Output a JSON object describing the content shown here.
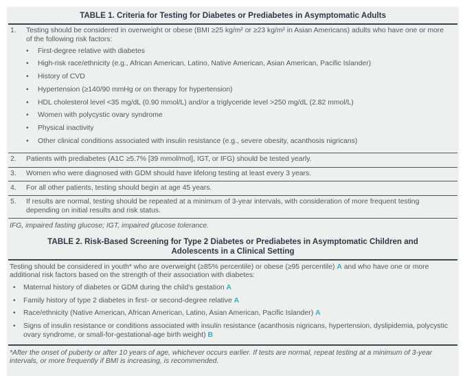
{
  "colors": {
    "page_bg": "#ffffff",
    "table_bg": "#edf0ee",
    "title_text": "#2e3945",
    "body_text": "#54585c",
    "rule": "#39434d",
    "grade_accent": "#33afc2"
  },
  "table1": {
    "title": "TABLE 1. Criteria for Testing for Diabetes or Prediabetes in Asymptomatic Adults",
    "rows": [
      {
        "num": "1.",
        "text": "Testing should be considered in overweight or obese (BMI ≥25 kg/m² or ≥23 kg/m² in Asian Americans) adults who have one or more of the following risk factors:",
        "bullets": [
          "First-degree relative with diabetes",
          "High-risk race/ethnicity (e.g., African American, Latino, Native American, Asian American, Pacific Islander)",
          "History of CVD",
          "Hypertension (≥140/90 mmHg or on therapy for hypertension)",
          "HDL cholesterol level <35 mg/dL (0.90 mmol/L) and/or a triglyceride level >250 mg/dL (2.82 mmol/L)",
          "Women with polycystic ovary syndrome",
          "Physical inactivity",
          "Other clinical conditions associated with insulin resistance (e.g., severe obesity, acanthosis nigricans)"
        ]
      },
      {
        "num": "2.",
        "text": "Patients with prediabetes (A1C ≥5.7% [39 mmol/mol], IGT, or IFG) should be tested yearly."
      },
      {
        "num": "3.",
        "text": "Women who were diagnosed with GDM should have lifelong testing at least every 3 years."
      },
      {
        "num": "4.",
        "text": "For all other patients, testing should begin at age 45 years."
      },
      {
        "num": "5.",
        "text": "If results are normal, testing should be repeated at a minimum of 3-year intervals, with consideration of more frequent testing depending on initial results and risk status."
      }
    ],
    "footnote": "IFG, impaired fasting glucose; IGT, impaired glucose tolerance.",
    "bullet_glyph": "•"
  },
  "table2": {
    "title": "TABLE 2. Risk-Based Screening for Type 2 Diabetes or Prediabetes in Asymptomatic Children and Adolescents in a Clinical Setting",
    "intro_pre": "Testing should be considered in youth* who are overweight (≥85% percentile) or obese (≥95 percentile) ",
    "intro_grade": "A",
    "intro_post": " and who have one or more additional risk factors based on the strength of their association with diabetes:",
    "bullets": [
      {
        "text": "Maternal history of diabetes or GDM during the child’s gestation ",
        "grade": "A"
      },
      {
        "text": "Family history of type 2 diabetes in first- or second-degree relative ",
        "grade": "A"
      },
      {
        "text": "Race/ethnicity (Native American, African American, Latino, Asian American, Pacific Islander) ",
        "grade": "A"
      },
      {
        "text": "Signs of insulin resistance or conditions associated with insulin resistance (acanthosis nigricans, hypertension, dyslipidemia, polycystic ovary syndrome, or small-for-gestational-age birth weight) ",
        "grade": "B"
      }
    ],
    "footnote": "*After the onset of puberty or after 10 years of age, whichever occurs earlier. If tests are normal, repeat testing at a minimum of 3-year intervals, or more frequently if BMI is increasing, is recommended.",
    "bullet_glyph": "•"
  }
}
